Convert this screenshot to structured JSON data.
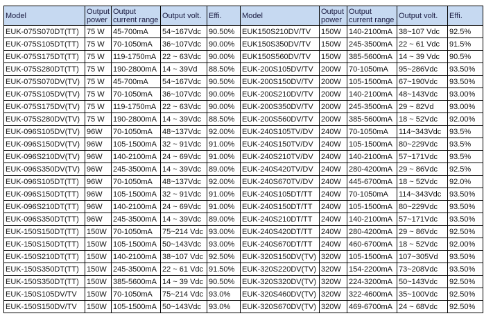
{
  "headers": [
    "Model",
    "Output power",
    "Output current range",
    "Output volt.",
    "Effi.",
    "Model",
    "Output power",
    "Output current range",
    "Output volt.",
    "Effi."
  ],
  "header_color": "#c6d9f1",
  "rows": [
    [
      "EUK-075S070DT(TT)",
      "75 W",
      "45-700mA",
      "54~167Vdc",
      "90.50%",
      "EUK150S210DV/TV",
      "150W",
      "140-2100mA",
      "38~107 Vdc",
      "92.5%"
    ],
    [
      "EUK-075S105DT(TT)",
      "75 W",
      "70-1050mA",
      "36~107Vdc",
      "90.00%",
      "EUK150S350DV/TV",
      "150W",
      "245-3500mA",
      "22 ~ 61 Vdc",
      "91.5%"
    ],
    [
      "EUK-075S175DT(TT)",
      "75 W",
      "119-1750mA",
      "22 ~ 63Vdc",
      "90.00%",
      "EUK150S560DV/TV",
      "150W",
      "385-5600mA",
      "14 ~ 39 Vdc",
      "90.5%"
    ],
    [
      "EUK-075S280DT(TT)",
      "75 W",
      "190-2800mA",
      "14 ~ 39Vd",
      "88.50%",
      "EUK-200S105DV/TV",
      "200W",
      "70-1050mA",
      "95~286Vdc",
      "93.50%"
    ],
    [
      "EUK-075S070DV(TV)",
      "75 W",
      "45-700mA",
      "54~167Vdc",
      "90.50%",
      "EUK-200S150DV/TV",
      "200W",
      "105-1500mA",
      "67~190Vdc",
      "93.50%"
    ],
    [
      "EUK-075S105DV(TV)",
      "75 W",
      "70-1050mA",
      "36~107Vdc",
      "90.00%",
      "EUK-200S210DV/TV",
      "200W",
      "140-2100mA",
      "48~143Vdc",
      "93.00%"
    ],
    [
      "EUK-075S175DV(TV)",
      "75 W",
      "119-1750mA",
      "22 ~ 63Vdc",
      "90.00%",
      "EUK-200S350DV/TV",
      "200W",
      "245-3500mA",
      "29 ~ 82Vd",
      "93.00%"
    ],
    [
      "EUK-075S280DV(TV)",
      "75 W",
      "190-2800mA",
      "14 ~ 39Vdc",
      "88.50%",
      "EUK-200S560DV/TV",
      "200W",
      "385-5600mA",
      "18 ~ 52Vdc",
      "92.00%"
    ],
    [
      "EUK-096S105DV(TV)",
      "96W",
      "70-1050mA",
      "48~137Vdc",
      "92.00%",
      "EUK-240S105TV/DV",
      "240W",
      "70-1050mA",
      "114~343Vdc",
      "93.5%"
    ],
    [
      "EUK-096S150DV(TV)",
      "96W",
      "105-1500mA",
      "32 ~ 91Vdc",
      "91.00%",
      "EUK-240S150TV/DV",
      "240W",
      "105-1500mA",
      "80~229Vdc",
      "93.5%"
    ],
    [
      "EUK-096S210DV(TV)",
      "96W",
      "140-2100mA",
      "24 ~ 69Vdc",
      "91.00%",
      "EUK-240S210TV/DV",
      "240W",
      "140-2100mA",
      " 57~171Vdc",
      "93.5%"
    ],
    [
      "EUK-096S350DV(TV)",
      "96W",
      "245-3500mA",
      "14 ~ 39Vdc",
      "89.00%",
      "EUK-240S420TV/DV",
      "240W",
      "280-4200mA",
      "29 ~ 86Vdc",
      "92.5%"
    ],
    [
      "EUK-096S105DT(TT)",
      "96W",
      "70-1050mA",
      "48~137Vdc",
      "92.00%",
      "EUK-240S670TV/DV",
      "240W",
      "445-6700mA",
      "18 ~ 52Vdc",
      "92.0%"
    ],
    [
      "EUK-096S150DT(TT)",
      "96W",
      "105-1500mA",
      "32 ~ 91Vdc",
      "91.00%",
      "EUK-240S105DT/TT",
      "240W",
      "70-1050mA",
      "114~343Vdc",
      "93.50%"
    ],
    [
      "EUK-096S210DT(TT)",
      "96W",
      "140-2100mA",
      "24 ~ 69Vdc",
      "91.00%",
      "EUK-240S150DT/TT",
      "240W",
      "105-1500mA",
      "80~229Vdc",
      "93.50%"
    ],
    [
      "EUK-096S350DT(TT)",
      "96W",
      "245-3500mA",
      "14 ~ 39Vdc",
      "89.00%",
      "EUK-240S210DT/TT",
      "240W",
      "140-2100mA",
      "57~171Vdc",
      "93.50%"
    ],
    [
      "EUK-150S150DT(TT)",
      "150W",
      "70-1050mA",
      "75~214 Vdc",
      "93.00%",
      "EUK-240S420DT/TT",
      "240W",
      "280-4200mA",
      "29 ~ 86Vdc",
      "92.50%"
    ],
    [
      "EUK-150S150DT(TT)",
      "150W",
      "105-1500mA",
      "50~143Vdc",
      "93.00%",
      "EUK-240S670DT/TT",
      "240W",
      "460-6700mA",
      "18 ~ 52Vdc",
      "92.00%"
    ],
    [
      "EUK-150S210DT(TT)",
      "150W",
      "140-2100mA",
      "38~107 Vdc",
      "92.50%",
      "EUK-320S150DV(TV)",
      "320W",
      "105-1500mA",
      "107~305Vd",
      "93.50%"
    ],
    [
      "EUK-150S350DT(TT)",
      "150W",
      "245-3500mA",
      "22 ~ 61 Vdc",
      "91.50%",
      "EUK-320S220DV(TV)",
      "320W",
      "154-2200mA",
      "73~208Vdc",
      "93.50%"
    ],
    [
      "EUK-150S350DT(TT)",
      "150W",
      "385-5600mA",
      "14 ~ 39 Vdc",
      "90.50%",
      "EUK-320S320DV(TV)",
      "320W",
      "224-3200mA",
      "50~143Vdc",
      "92.50%"
    ],
    [
      "EUK-150S105DV/TV",
      "150W",
      "70-1050mA",
      "75~214 Vdc",
      "93.0%",
      "EUK-320S460DV(TV)",
      "320W",
      "322-4600mA",
      "35~100Vdc",
      "92.50%"
    ],
    [
      "EUK-150S150DV/TV",
      "150W",
      "105-1500mA",
      "50~143Vdc",
      "93.0%",
      "EUK-320S670DV(TV)",
      "320W",
      "469-6700mA",
      "24 ~ 68Vdc",
      "92.50%"
    ]
  ]
}
